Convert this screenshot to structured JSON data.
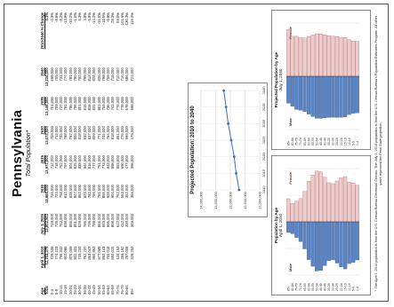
{
  "document": {
    "title": "Pennsylvania",
    "subtitle": "Total Population*",
    "table": {
      "headers": [
        "Age",
        "April 1, 2010",
        "July 1, 2020",
        "2020",
        "2025",
        "2030",
        "2035",
        "2040",
        "2010-2040 % Change"
      ],
      "rows": [
        [
          "Total",
          "12,702,379",
          "12,802,503",
          "12,868,000",
          "12,972,000",
          "13,073,000",
          "13,146,000",
          "13,224,000",
          "4.1%"
        ],
        [
          "0-4",
          "729,538",
          "718,000",
          "716,000",
          "712,000",
          "708,000",
          "701,000",
          "698,000",
          "-4.3%"
        ],
        [
          "5-9",
          "774,223",
          "729,000",
          "723,000",
          "718,000",
          "713,000",
          "709,000",
          "705,000",
          "-8.9%"
        ],
        [
          "10-14",
          "796,342",
          "763,000",
          "758,000",
          "752,000",
          "744,000",
          "737,000",
          "731,000",
          "-8.2%"
        ],
        [
          "15-19",
          "902,085",
          "838,000",
          "812,000",
          "797,000",
          "788,000",
          "781,000",
          "777,000",
          "-13.9%"
        ],
        [
          "20-24",
          "870,009",
          "856,000",
          "828,000",
          "804,000",
          "792,000",
          "786,000",
          "781,000",
          "-10.2%"
        ],
        [
          "25-29",
          "802,331",
          "861,000",
          "847,000",
          "826,000",
          "806,000",
          "796,000",
          "790,000",
          "-1.5%"
        ],
        [
          "30-34",
          "745,233",
          "829,000",
          "852,000",
          "839,000",
          "818,000",
          "801,000",
          "792,000",
          "6.3%"
        ],
        [
          "35-39",
          "762,237",
          "786,000",
          "823,000",
          "844,000",
          "832,000",
          "815,000",
          "799,000",
          "4.8%"
        ],
        [
          "40-44",
          "863,047",
          "759,000",
          "782,000",
          "816,000",
          "837,000",
          "828,000",
          "812,000",
          "-5.9%"
        ],
        [
          "45-49",
          "960,863",
          "788,000",
          "756,000",
          "777,000",
          "809,000",
          "831,000",
          "824,000",
          "-14.2%"
        ],
        [
          "50-54",
          "977,089",
          "866,000",
          "781,000",
          "751,000",
          "771,000",
          "803,000",
          "826,000",
          "-15.5%"
        ],
        [
          "55-59",
          "892,143",
          "945,000",
          "855,000",
          "773,000",
          "744,000",
          "765,000",
          "798,000",
          "-10.6%"
        ],
        [
          "60-64",
          "765,018",
          "936,000",
          "928,000",
          "843,000",
          "764,000",
          "736,000",
          "759,000",
          "-0.8%"
        ],
        [
          "65-69",
          "560,015",
          "808,000",
          "904,000",
          "898,000",
          "818,000",
          "743,000",
          "718,000",
          "28.2%"
        ],
        [
          "70-74",
          "420,153",
          "612,000",
          "762,000",
          "853,000",
          "851,000",
          "778,000",
          "710,000",
          "69.0%"
        ],
        [
          "75-79",
          "355,192",
          "412,000",
          "553,000",
          "690,000",
          "776,000",
          "778,000",
          "716,000",
          "101.6%"
        ],
        [
          "80-84",
          "297,008",
          "300,000",
          "352,000",
          "477,000",
          "599,000",
          "678,000",
          "684,000",
          "130.3%"
        ],
        [
          "85+",
          "329,253",
          "349,000",
          "366,000",
          "396,000",
          "479,000",
          "598,000",
          "721,000",
          "119.0%"
        ]
      ]
    },
    "line_chart_title": "Projected Population: 2010 to 2040",
    "line_chart_years": [
      "2010",
      "2015",
      "2020",
      "2025",
      "2030",
      "2035",
      "2040"
    ],
    "pyramid_left": {
      "title": "Population by Age",
      "subtitle": "April 1, 2010",
      "male": "Male",
      "female": "Female"
    },
    "pyramid_right": {
      "title": "Projected Population by Age",
      "subtitle": "July 1, 2040",
      "male": "Male",
      "female": "Female"
    },
    "footnote": "* The April 1, 2010 population is from the U.S. Census Bureau Decennial Census. The July 1, 2010 population is from the U.S. Census Bureau's Population Estimates Program. All other years represent the Penn State projection."
  },
  "chart_data": [
    {
      "type": "line",
      "title": "Projected Population: 2010 to 2040",
      "x": [
        "2010",
        "2015",
        "2020",
        "2025",
        "2030",
        "2035",
        "2040"
      ],
      "series": [
        {
          "values": [
            12702379,
            12802503,
            12868000,
            12972000,
            13073000,
            13146000,
            13224000
          ]
        }
      ],
      "ylim": [
        12000000,
        14000000
      ],
      "grid": true
    },
    {
      "type": "bar",
      "title": "Population by Age",
      "categories": [
        "0-4",
        "5-9",
        "10-14",
        "15-19",
        "20-24",
        "25-29",
        "30-34",
        "35-39",
        "40-44",
        "45-49",
        "50-54",
        "55-59",
        "60-64",
        "65-69",
        "70-74",
        "75-79",
        "80-84",
        "85+"
      ],
      "series": [
        {
          "name": "Male",
          "values": [
            373000,
            396000,
            408000,
            460000,
            440000,
            403000,
            372000,
            380000,
            428000,
            474000,
            480000,
            434000,
            369000,
            264000,
            193000,
            153000,
            116000,
            104000
          ]
        },
        {
          "name": "Female",
          "values": [
            357000,
            378000,
            388000,
            442000,
            430000,
            399000,
            373000,
            382000,
            435000,
            487000,
            497000,
            458000,
            396000,
            296000,
            227000,
            202000,
            181000,
            225000
          ]
        }
      ]
    },
    {
      "type": "bar",
      "title": "Projected Population by Age",
      "categories": [
        "0-4",
        "5-9",
        "10-14",
        "15-19",
        "20-24",
        "25-29",
        "30-34",
        "35-39",
        "40-44",
        "45-49",
        "50-54",
        "55-59",
        "60-64",
        "65-69",
        "70-74",
        "75-79",
        "80-84",
        "85+"
      ],
      "series": [
        {
          "name": "Male",
          "values": [
            357000,
            361000,
            374000,
            398000,
            400000,
            402000,
            400000,
            402000,
            406000,
            410000,
            410000,
            393000,
            369000,
            344000,
            331000,
            324000,
            293000,
            262000
          ]
        },
        {
          "name": "Female",
          "values": [
            341000,
            344000,
            357000,
            379000,
            381000,
            388000,
            392000,
            397000,
            406000,
            414000,
            416000,
            405000,
            390000,
            374000,
            379000,
            392000,
            391000,
            459000
          ]
        }
      ]
    }
  ]
}
